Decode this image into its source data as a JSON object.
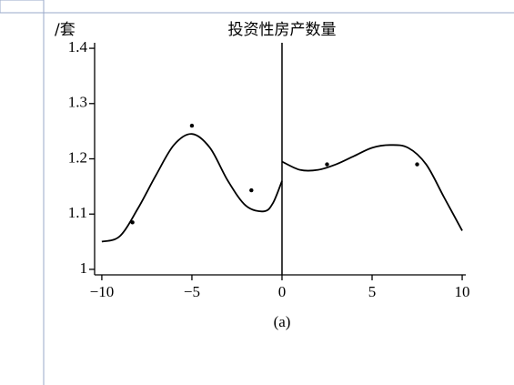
{
  "chart_data": {
    "type": "scatter",
    "title": "投资性房产数量",
    "y_label": "/套",
    "caption": "(a)",
    "x": [
      -8.3,
      -5,
      -1.7,
      2.5,
      7.5
    ],
    "values": [
      1.085,
      1.26,
      1.143,
      1.19,
      1.19
    ],
    "fits": [
      {
        "x": [
          -10,
          -9,
          -8,
          -7,
          -6,
          -5,
          -4,
          -3,
          -2,
          -1,
          -0.5,
          0
        ],
        "values": [
          1.05,
          1.06,
          1.11,
          1.17,
          1.225,
          1.245,
          1.22,
          1.16,
          1.115,
          1.105,
          1.12,
          1.16
        ]
      },
      {
        "x": [
          0,
          1,
          2,
          3,
          4,
          5,
          6,
          7,
          8,
          9,
          10
        ],
        "values": [
          1.195,
          1.18,
          1.18,
          1.19,
          1.205,
          1.22,
          1.225,
          1.22,
          1.19,
          1.13,
          1.07
        ]
      }
    ],
    "cutoff": 0,
    "color": "#000000",
    "xlim": [
      -10.4,
      10.2
    ],
    "ylim": [
      0.99,
      1.41
    ],
    "xticks": [
      -10,
      -5,
      0,
      5,
      10
    ],
    "yticks": [
      1,
      1.1,
      1.2,
      1.3,
      1.4
    ]
  }
}
